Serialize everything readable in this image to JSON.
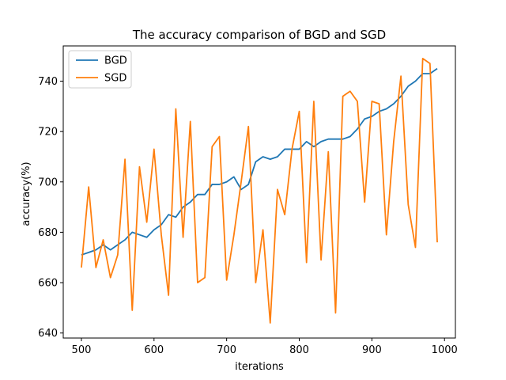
{
  "chart_data": {
    "type": "line",
    "title": "The accuracy comparison of BGD and SGD",
    "xlabel": "iterations",
    "ylabel": "accuracy(%)",
    "xlim": [
      475,
      1015
    ],
    "ylim": [
      638,
      754
    ],
    "xticks": [
      500,
      600,
      700,
      800,
      900,
      1000
    ],
    "yticks": [
      640,
      660,
      680,
      700,
      720,
      740
    ],
    "grid": false,
    "legend_position": "top-left",
    "x": [
      500,
      510,
      520,
      530,
      540,
      550,
      560,
      570,
      580,
      590,
      600,
      610,
      620,
      630,
      640,
      650,
      660,
      670,
      680,
      690,
      700,
      710,
      720,
      730,
      740,
      750,
      760,
      770,
      780,
      790,
      800,
      810,
      820,
      830,
      840,
      850,
      860,
      870,
      880,
      890,
      900,
      910,
      920,
      930,
      940,
      950,
      960,
      970,
      980,
      990
    ],
    "series": [
      {
        "name": "BGD",
        "color": "#1f77b4",
        "values": [
          671,
          672,
          673,
          675,
          673,
          675,
          677,
          680,
          679,
          678,
          681,
          683,
          687,
          686,
          690,
          692,
          695,
          695,
          699,
          699,
          700,
          702,
          697,
          699,
          708,
          710,
          709,
          710,
          713,
          713,
          713,
          716,
          714,
          716,
          717,
          717,
          717,
          718,
          721,
          725,
          726,
          728,
          729,
          731,
          734,
          738,
          740,
          743,
          743,
          745
        ]
      },
      {
        "name": "SGD",
        "color": "#ff7f0e",
        "values": [
          666,
          698,
          666,
          677,
          662,
          671,
          709,
          649,
          706,
          684,
          713,
          679,
          655,
          729,
          678,
          724,
          660,
          662,
          714,
          718,
          661,
          679,
          700,
          722,
          660,
          681,
          644,
          697,
          687,
          713,
          728,
          668,
          732,
          669,
          712,
          648,
          734,
          736,
          732,
          692,
          732,
          731,
          679,
          716,
          742,
          691,
          674,
          749,
          747,
          676
        ]
      }
    ]
  }
}
